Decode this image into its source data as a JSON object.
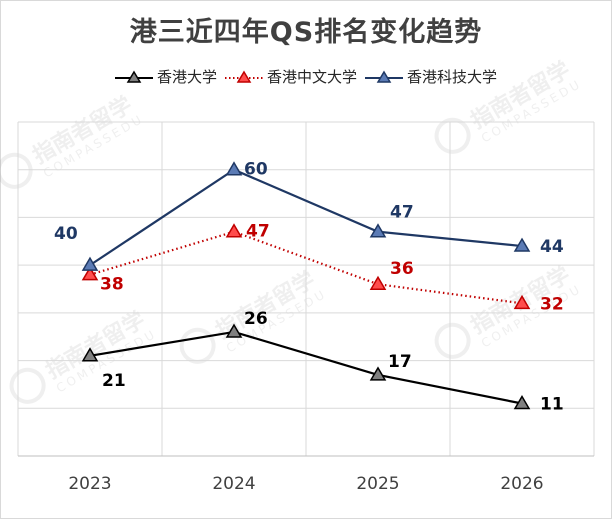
{
  "chart_data": {
    "type": "line",
    "title": "港三近四年QS排名变化趋势",
    "xlabel": "",
    "ylabel": "",
    "categories": [
      "2023",
      "2024",
      "2025",
      "2026"
    ],
    "series": [
      {
        "name": "香港大学",
        "values": [
          21,
          26,
          17,
          11
        ],
        "color": "#000000",
        "marker_fill": "#808080",
        "dash": "solid"
      },
      {
        "name": "香港中文大学",
        "values": [
          38,
          47,
          36,
          32
        ],
        "color": "#c00000",
        "marker_fill": "#ff4d4d",
        "dash": "dotted"
      },
      {
        "name": "香港科技大学",
        "values": [
          40,
          60,
          47,
          44
        ],
        "color": "#1f3864",
        "marker_fill": "#5b7bb5",
        "dash": "solid"
      }
    ],
    "ylim": [
      0,
      70
    ],
    "grid": true,
    "legend_position": "top"
  },
  "watermark": {
    "brand": "指南者留学",
    "latin": "COMPASSEDU"
  }
}
